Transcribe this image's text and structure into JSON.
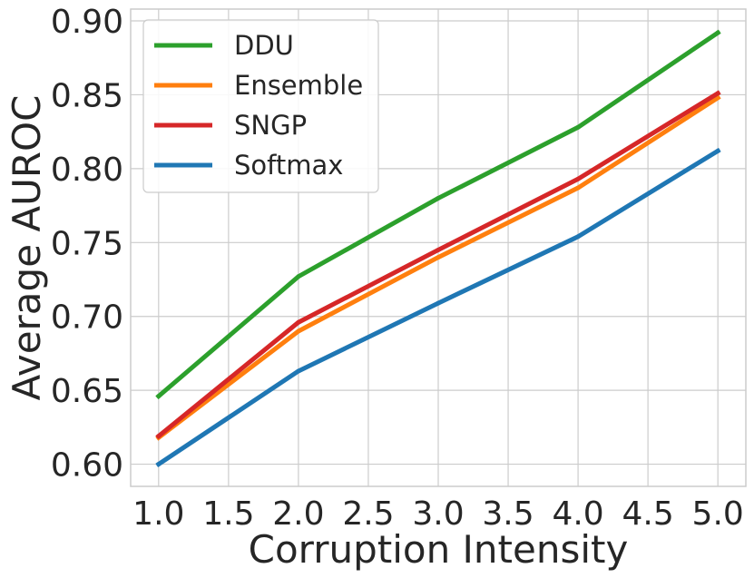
{
  "chart_data": {
    "type": "line",
    "title": "",
    "xlabel": "Corruption Intensity",
    "ylabel": "Average AUROC",
    "x": [
      1.0,
      2.0,
      3.0,
      4.0,
      5.0
    ],
    "xticks": [
      "1.0",
      "1.5",
      "2.0",
      "2.5",
      "3.0",
      "3.5",
      "4.0",
      "4.5",
      "5.0"
    ],
    "yticks": [
      "0.60",
      "0.65",
      "0.70",
      "0.75",
      "0.80",
      "0.85",
      "0.90"
    ],
    "xlim": [
      0.8,
      5.2
    ],
    "ylim": [
      0.585,
      0.908
    ],
    "grid": true,
    "legend_position": "top-left",
    "series": [
      {
        "name": "DDU",
        "color": "#2ca02c",
        "values": [
          0.646,
          0.727,
          0.78,
          0.828,
          0.892
        ]
      },
      {
        "name": "Ensemble",
        "color": "#ff7f0e",
        "values": [
          0.618,
          0.69,
          0.74,
          0.787,
          0.848
        ]
      },
      {
        "name": "SNGP",
        "color": "#d62728",
        "values": [
          0.619,
          0.696,
          0.745,
          0.793,
          0.851
        ]
      },
      {
        "name": "Softmax",
        "color": "#1f77b4",
        "values": [
          0.6,
          0.663,
          0.709,
          0.754,
          0.812
        ]
      }
    ]
  }
}
